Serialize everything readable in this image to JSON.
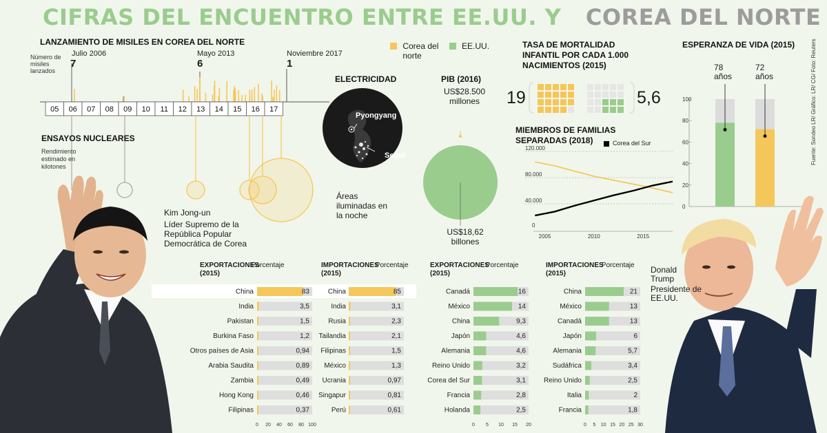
{
  "title": {
    "part1": "CIFRAS DEL ENCUENTRO ENTRE EE.UU.",
    "and": "Y",
    "part2": "COREA DEL NORTE"
  },
  "colors": {
    "korea": "#f5c75a",
    "usa": "#9acc8e",
    "gray": "#dcdcdc",
    "dark": "#2a2a2a",
    "title_green": "#9acc8e",
    "title_gray": "#9c9c9c"
  },
  "legend": {
    "korea": "Corea del norte",
    "usa": "EE.UU."
  },
  "missiles": {
    "heading": "LANZAMIENTO DE MISILES EN COREA DEL NORTE",
    "axis_note": "Número de misiles lanzados",
    "years": [
      "05",
      "06",
      "07",
      "08",
      "09",
      "10",
      "11",
      "12",
      "13",
      "14",
      "15",
      "16",
      "17"
    ],
    "callouts": [
      {
        "label": "Julio 2006",
        "value": "7"
      },
      {
        "label": "Mayo 2013",
        "value": "6"
      },
      {
        "label": "Noviembre 2017",
        "value": "1"
      }
    ]
  },
  "nuclear": {
    "heading": "ENSAYOS NUCLEARES",
    "note": "Rendimiento estimado en kilotones"
  },
  "kim": {
    "name": "Kim Jong-un",
    "role": "Líder Supremo de la República Popular Democrática de Corea"
  },
  "trump": {
    "name": "Donald Trump",
    "role": "Presidente de EE.UU."
  },
  "electricity": {
    "heading": "ELECTRICIDAD",
    "city1": "Pyongyang",
    "city2": "Seoul",
    "caption": "Áreas iluminadas en la noche"
  },
  "gdp": {
    "heading": "PIB (2016)",
    "korea_label": "US$28.500 millones",
    "usa_label": "US$18,62 billones"
  },
  "mortality": {
    "heading": "TASA DE MORTALIDAD INFANTIL POR CADA 1.000 NACIMIENTOS (2015)",
    "korea_value": "19",
    "usa_value": "5,6"
  },
  "families": {
    "heading": "MIEMBROS DE FAMILIAS SEPARADAS (2018)",
    "legend_label": "Corea del Sur",
    "ytick_labels": [
      "120.000",
      "80.000",
      "40.000",
      "0"
    ],
    "xtick_labels": [
      "2005",
      "2010",
      "2015"
    ]
  },
  "life": {
    "heading": "ESPERANZA DE VIDA (2015)",
    "korea_label": "72 años",
    "usa_label": "78 años",
    "ticks": [
      "100",
      "80",
      "60",
      "40",
      "20",
      "0"
    ]
  },
  "source": "Fuente: Sondeo LR/ Gráfico: LR/ CG/ Foto: Reuters",
  "trade_headings": {
    "kp_exp": "EXPORTACIONES (2015)",
    "kp_imp": "IMPORTACIONES (2015)",
    "us_exp": "EXPORTACIONES (2015)",
    "us_imp": "IMPORTACIONES (2015)",
    "unit": "Porcentaje"
  },
  "chart_data": [
    {
      "id": "kp_exports",
      "type": "bar",
      "title": "EXPORTACIONES (2015)",
      "ylabel": "Porcentaje",
      "xlim": [
        0,
        100
      ],
      "xticks": [
        "0",
        "20",
        "40",
        "60",
        "80",
        "100"
      ],
      "categories": [
        "China",
        "India",
        "Pakistan",
        "Burkina Faso",
        "Otros países de Asia",
        "Arabia Saudita",
        "Zambia",
        "Hong Kong",
        "Filipinas"
      ],
      "values": [
        83,
        3.5,
        1.5,
        1.2,
        0.94,
        0.89,
        0.49,
        0.46,
        0.37
      ],
      "labels": [
        "83",
        "3,5",
        "1,5",
        "1,2",
        "0,94",
        "0,89",
        "0,49",
        "0,46",
        "0,37"
      ]
    },
    {
      "id": "kp_imports",
      "type": "bar",
      "title": "IMPORTACIONES (2015)",
      "ylabel": "Porcentaje",
      "xlim": [
        0,
        100
      ],
      "categories": [
        "China",
        "India",
        "Rusia",
        "Tailandia",
        "Filipinas",
        "México",
        "Ucrania",
        "Singapur",
        "Perú"
      ],
      "values": [
        85,
        3.1,
        2.3,
        2.1,
        1.5,
        1.3,
        0.97,
        0.81,
        0.61
      ],
      "labels": [
        "85",
        "3,1",
        "2,3",
        "2,1",
        "1,5",
        "1,3",
        "0,97",
        "0,81",
        "0,61"
      ]
    },
    {
      "id": "us_exports",
      "type": "bar",
      "title": "EXPORTACIONES (2015)",
      "ylabel": "Porcentaje",
      "xlim": [
        0,
        20
      ],
      "xticks": [
        "0",
        "5",
        "10",
        "15",
        "20"
      ],
      "categories": [
        "Canadá",
        "México",
        "China",
        "Japón",
        "Alemania",
        "Reino Unido",
        "Corea del Sur",
        "Francia",
        "Holanda"
      ],
      "values": [
        16,
        14,
        9.3,
        4.6,
        4.6,
        3.2,
        3.1,
        2.8,
        2.5
      ],
      "labels": [
        "16",
        "14",
        "9,3",
        "4,6",
        "4,6",
        "3,2",
        "3,1",
        "2,8",
        "2,5"
      ]
    },
    {
      "id": "us_imports",
      "type": "bar",
      "title": "IMPORTACIONES (2015)",
      "ylabel": "Porcentaje",
      "xlim": [
        0,
        30
      ],
      "xticks": [
        "0",
        "5",
        "10",
        "15",
        "20",
        "25",
        "30"
      ],
      "categories": [
        "China",
        "México",
        "Canadá",
        "Japón",
        "Alemania",
        "Sudáfrica",
        "Reino Unido",
        "Italia",
        "Francia"
      ],
      "values": [
        21,
        13,
        13,
        6,
        5.7,
        3.4,
        2.5,
        2,
        1.8
      ],
      "labels": [
        "21",
        "13",
        "13",
        "6",
        "5,7",
        "3,4",
        "2,5",
        "2",
        "1,8"
      ]
    },
    {
      "id": "missile_launches",
      "type": "bar",
      "title": "LANZAMIENTO DE MISILES EN COREA DEL NORTE",
      "ylabel": "Número de misiles lanzados",
      "x": [
        "2006-07",
        "2013-05",
        "2017-11"
      ],
      "values": [
        7,
        6,
        1
      ]
    },
    {
      "id": "separated_families",
      "type": "line",
      "title": "MIEMBROS DE FAMILIAS SEPARADAS (2018)",
      "ylim": [
        0,
        120000
      ],
      "xlim": [
        2003,
        2018
      ],
      "series": [
        {
          "name": "",
          "color": "#f5c75a",
          "x": [
            2004,
            2006,
            2008,
            2010,
            2012,
            2014,
            2016,
            2018
          ],
          "y": [
            104000,
            98000,
            90000,
            82000,
            76000,
            70000,
            64000,
            57000
          ]
        },
        {
          "name": "Corea del Sur",
          "color": "#000000",
          "x": [
            2004,
            2006,
            2008,
            2010,
            2012,
            2014,
            2016,
            2018
          ],
          "y": [
            22000,
            28000,
            37000,
            45000,
            53000,
            60000,
            68000,
            74000
          ]
        }
      ]
    },
    {
      "id": "life_expectancy",
      "type": "bar",
      "title": "ESPERANZA DE VIDA (2015)",
      "ylim": [
        0,
        100
      ],
      "categories": [
        "EE.UU.",
        "Corea del norte"
      ],
      "values": [
        78,
        72
      ]
    },
    {
      "id": "gdp",
      "type": "bar",
      "title": "PIB (2016)",
      "categories": [
        "Corea del norte",
        "EE.UU."
      ],
      "labels": [
        "US$28.500 millones",
        "US$18,62 billones"
      ]
    }
  ]
}
